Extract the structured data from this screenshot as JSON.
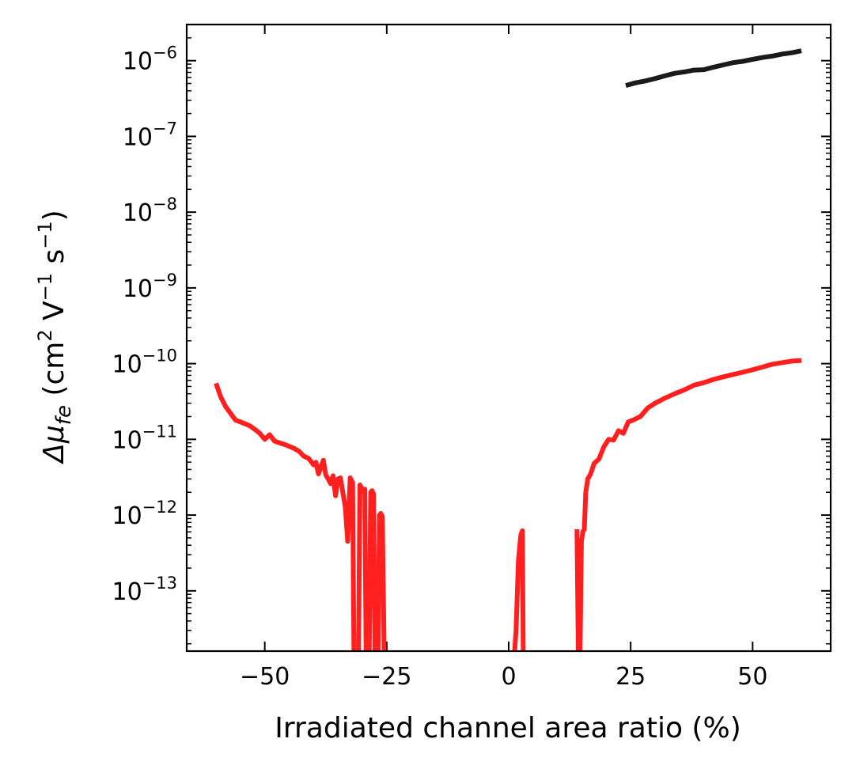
{
  "chart_data": {
    "type": "line",
    "xlabel": "Irradiated channel area ratio (%)",
    "ylabel": {
      "prefix": "Δμ",
      "subscript": "fe",
      "units_open": " (cm",
      "units_sup1": "2",
      "units_mid": " V",
      "units_sup2": "−1",
      "units_mid2": " s",
      "units_sup3": "−1",
      "units_close": ")"
    },
    "xscale": "linear",
    "yscale": "log",
    "xlim": [
      -66,
      66
    ],
    "ylim": [
      1.6e-14,
      3e-06
    ],
    "x_ticks": [
      -50,
      -25,
      0,
      25,
      50
    ],
    "x_tick_labels": [
      "−50",
      "−25",
      "0",
      "25",
      "50"
    ],
    "y_tick_exponents": [
      -13,
      -12,
      -11,
      -10,
      -9,
      -8,
      -7,
      -6
    ],
    "y_tick_base": "10",
    "y_tick_exp_labels": [
      "−13",
      "−12",
      "−11",
      "−10",
      "−9",
      "−8",
      "−7",
      "−6"
    ],
    "grid": false,
    "tick_direction": "in",
    "series": [
      {
        "color": "#1a1a1a",
        "x": [
          24,
          26,
          28,
          30,
          32,
          34,
          36,
          38,
          40,
          42,
          44,
          46,
          48,
          50,
          52,
          54,
          56,
          58,
          60
        ],
        "y": [
          4.7e-07,
          5.1e-07,
          5.4e-07,
          5.8e-07,
          6.3e-07,
          6.8e-07,
          7.1e-07,
          7.5e-07,
          7.6e-07,
          8.2e-07,
          8.8e-07,
          9.4e-07,
          9.8e-07,
          1.04e-06,
          1.1e-06,
          1.15e-06,
          1.22e-06,
          1.27e-06,
          1.35e-06
        ]
      },
      {
        "color": "#ff1f1f",
        "segments": [
          {
            "x": [
              -60,
              -59,
              -58,
              -57,
              -56,
              -55,
              -54,
              -53,
              -52,
              -51,
              -50,
              -49,
              -48,
              -47,
              -46,
              -45,
              -44,
              -43,
              -42,
              -41,
              -40,
              -39.5,
              -39,
              -38,
              -37.5,
              -37,
              -36.5,
              -36,
              -35.5,
              -35,
              -34.5,
              -34,
              -33.5,
              -33,
              -32.5,
              -32,
              -31.7
            ],
            "y": [
              5.5e-11,
              3.6e-11,
              2.7e-11,
              2.2e-11,
              1.8e-11,
              1.7e-11,
              1.6e-11,
              1.5e-11,
              1.35e-11,
              1.2e-11,
              1e-11,
              1.15e-11,
              9.5e-12,
              9e-12,
              8.6e-12,
              8.1e-12,
              7.6e-12,
              7e-12,
              6e-12,
              5.6e-12,
              4.6e-12,
              5e-12,
              3.5e-12,
              5.3e-12,
              3.4e-12,
              3e-12,
              2.6e-12,
              3.3e-12,
              1.8e-12,
              3e-12,
              3.1e-12,
              2e-12,
              1.3e-12,
              4.5e-13,
              3.1e-12,
              2.7e-12,
              1e-14
            ]
          },
          {
            "x": [
              -30.8,
              -30.5,
              -30.2,
              -29.8,
              -29.5,
              -29.2
            ],
            "y": [
              1e-14,
              2.5e-12,
              2.3e-12,
              2e-12,
              2.2e-12,
              1e-14
            ]
          },
          {
            "x": [
              -28.6,
              -28.3,
              -28.0,
              -27.7,
              -27.4
            ],
            "y": [
              1e-14,
              2e-12,
              2.1e-12,
              1.9e-12,
              1e-14
            ]
          },
          {
            "x": [
              -26.8,
              -26.5,
              -26.2,
              -25.9,
              -25.5
            ],
            "y": [
              1e-14,
              1e-12,
              1.05e-12,
              9.5e-13,
              1e-14
            ]
          },
          {
            "x": [
              1.0,
              1.5,
              2.0,
              2.5,
              2.8,
              3.0
            ],
            "y": [
              1e-14,
              3e-14,
              2.5e-13,
              5.5e-13,
              6.2e-13,
              1e-14
            ]
          },
          {
            "x": [
              14.0,
              14.3,
              14.6,
              14.9,
              15.2,
              15.5,
              15.8,
              16.2,
              16.8,
              17.5,
              18.5,
              19.5,
              20.5,
              21.5,
              22.5,
              23.5,
              24.5,
              25.5,
              27,
              28.5,
              30,
              32,
              34,
              36,
              38,
              40,
              42,
              44,
              46,
              48,
              50,
              52,
              54,
              56,
              58,
              60
            ],
            "y": [
              6.5e-13,
              1e-14,
              1e-14,
              4.5e-13,
              6e-13,
              6.5e-13,
              2e-12,
              3e-12,
              3.5e-12,
              4.8e-12,
              5.5e-12,
              8e-12,
              1e-11,
              9.8e-12,
              1.3e-11,
              1.2e-11,
              1.7e-11,
              1.8e-11,
              2e-11,
              2.6e-11,
              3e-11,
              3.5e-11,
              4e-11,
              4.5e-11,
              5.2e-11,
              5.6e-11,
              6.2e-11,
              6.7e-11,
              7.2e-11,
              7.7e-11,
              8.3e-11,
              9e-11,
              9.8e-11,
              1.03e-10,
              1.08e-10,
              1.1e-10
            ]
          }
        ]
      }
    ]
  }
}
